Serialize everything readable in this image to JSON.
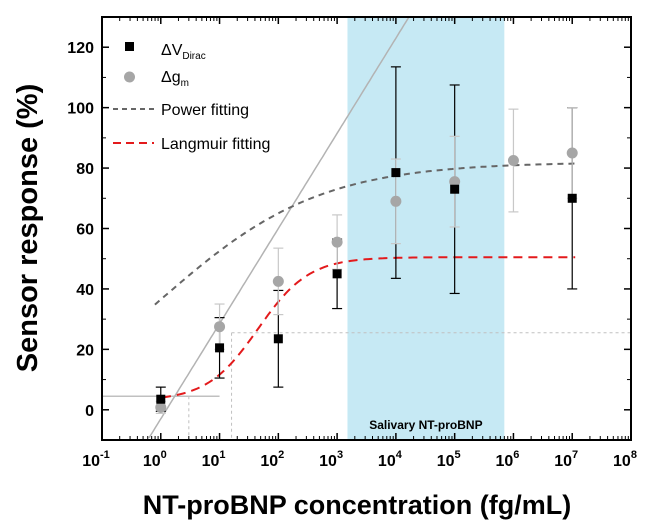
{
  "chart_data": {
    "type": "scatter",
    "xlabel": "NT-proBNP concentration (fg/mL)",
    "ylabel": "Sensor response (%)",
    "x_scale": "log",
    "xlim": [
      0.1,
      100000000
    ],
    "ylim": [
      -10,
      130
    ],
    "x_ticks": [
      {
        "base": "10",
        "exp": "-1"
      },
      {
        "base": "10",
        "exp": "0"
      },
      {
        "base": "10",
        "exp": "1"
      },
      {
        "base": "10",
        "exp": "2"
      },
      {
        "base": "10",
        "exp": "3"
      },
      {
        "base": "10",
        "exp": "4"
      },
      {
        "base": "10",
        "exp": "5"
      },
      {
        "base": "10",
        "exp": "6"
      },
      {
        "base": "10",
        "exp": "7"
      },
      {
        "base": "10",
        "exp": "8"
      }
    ],
    "y_ticks": [
      "0",
      "20",
      "40",
      "60",
      "80",
      "100",
      "120"
    ],
    "shaded_region": {
      "label": "Salivary NT-proBNP",
      "x_range": [
        1500,
        700000
      ],
      "color": "#c6e9f4"
    },
    "series": [
      {
        "name": "ΔV",
        "name_sub": "Dirac",
        "marker": "square",
        "color": "#000000",
        "x": [
          1,
          10,
          100,
          1000,
          10000,
          100000,
          10000000
        ],
        "y": [
          3.5,
          20.5,
          23.5,
          45,
          78.5,
          73,
          70
        ],
        "err": [
          4,
          10,
          16,
          11.5,
          35,
          34.5,
          30
        ]
      },
      {
        "name": "Δg",
        "name_sub": "m",
        "marker": "circle",
        "color": "#a6a6a6",
        "x": [
          1,
          10,
          100,
          1000,
          10000,
          100000,
          1000000,
          10000000
        ],
        "y": [
          0.8,
          27.5,
          42.5,
          55.5,
          69,
          75.5,
          82.5,
          85
        ],
        "err": [
          2,
          7.5,
          11,
          9,
          14,
          15,
          17,
          15
        ]
      }
    ],
    "fits": [
      {
        "name": "Power fitting",
        "style": "dashed",
        "color": "#666666"
      },
      {
        "name": "Langmuir fitting",
        "style": "dashed",
        "color": "#e31a1c"
      }
    ],
    "linear_fit": {
      "style": "solid",
      "color": "#b3b3b3"
    },
    "guide_lines": {
      "low_level_y": 4.5,
      "low_level_x": 3,
      "mid_level_y": 25.5,
      "mid_level_x": 16,
      "color": "#c0c0c0"
    }
  }
}
